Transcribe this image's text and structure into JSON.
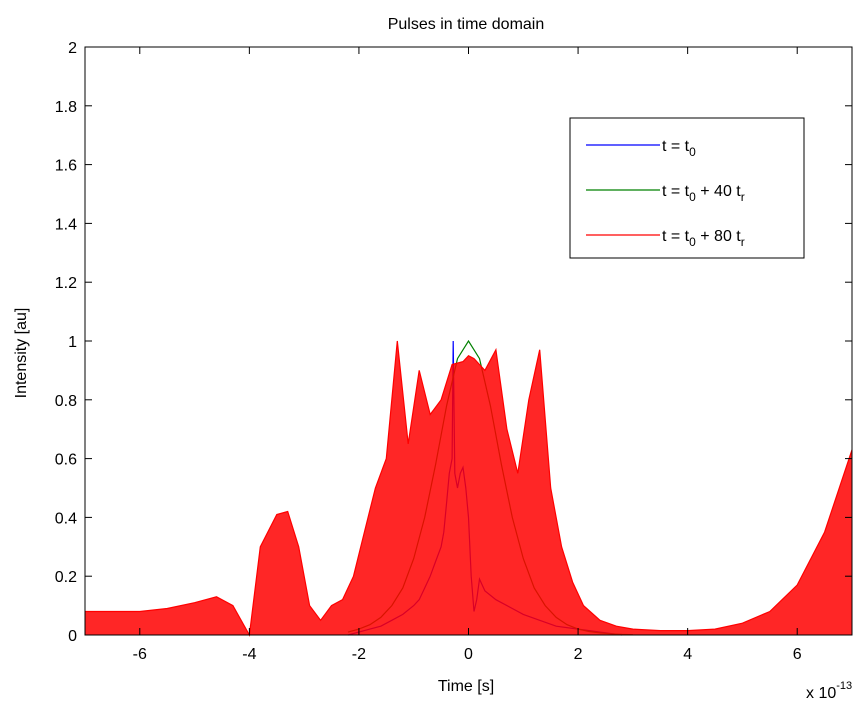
{
  "chart_data": {
    "type": "line",
    "title": "Pulses in time domain",
    "xlabel": "Time [s]",
    "ylabel": "Intensity [au]",
    "x_exponent_label": {
      "base": "x 10",
      "exp": "-13"
    },
    "xlim": [
      -7,
      7
    ],
    "ylim": [
      0,
      2
    ],
    "x_ticks": [
      -6,
      -4,
      -2,
      0,
      2,
      4,
      6
    ],
    "x_tick_labels": [
      "-6",
      "-4",
      "-2",
      "0",
      "2",
      "4",
      "6"
    ],
    "y_ticks": [
      0,
      0.2,
      0.4,
      0.6,
      0.8,
      1,
      1.2,
      1.4,
      1.6,
      1.8,
      2
    ],
    "y_tick_labels": [
      "0",
      "0.2",
      "0.4",
      "0.6",
      "0.8",
      "1",
      "1.2",
      "1.4",
      "1.6",
      "1.8",
      "2"
    ],
    "grid": false,
    "legend_position": "top-right",
    "series": [
      {
        "name": "t = t0",
        "legend_base": "t = t",
        "legend_sub": "0",
        "legend_tail": "",
        "legend_sub2": "",
        "color": "#0000ff",
        "x": [
          -2.2,
          -2.0,
          -1.8,
          -1.6,
          -1.4,
          -1.2,
          -1.0,
          -0.9,
          -0.8,
          -0.7,
          -0.6,
          -0.5,
          -0.45,
          -0.4,
          -0.35,
          -0.3,
          -0.28,
          -0.25,
          -0.2,
          -0.15,
          -0.1,
          -0.05,
          0.0,
          0.05,
          0.1,
          0.15,
          0.2,
          0.25,
          0.3,
          0.5,
          0.8,
          1.0,
          1.3,
          1.6,
          2.0,
          2.4,
          2.8
        ],
        "y": [
          0.0,
          0.01,
          0.02,
          0.03,
          0.05,
          0.07,
          0.1,
          0.12,
          0.16,
          0.2,
          0.25,
          0.3,
          0.35,
          0.45,
          0.55,
          0.6,
          1.0,
          0.55,
          0.5,
          0.55,
          0.57,
          0.5,
          0.4,
          0.2,
          0.08,
          0.12,
          0.19,
          0.17,
          0.15,
          0.12,
          0.09,
          0.07,
          0.05,
          0.03,
          0.02,
          0.01,
          0.0
        ]
      },
      {
        "name": "t = t0 + 40 tr",
        "legend_base": "t = t",
        "legend_sub": "0",
        "legend_tail": " + 40 t",
        "legend_sub2": "r",
        "color": "#008000",
        "x": [
          -2.2,
          -2.0,
          -1.8,
          -1.6,
          -1.4,
          -1.2,
          -1.0,
          -0.8,
          -0.6,
          -0.4,
          -0.2,
          0.0,
          0.2,
          0.4,
          0.6,
          0.8,
          1.0,
          1.2,
          1.4,
          1.6,
          1.8,
          2.0,
          2.2,
          2.4,
          2.6,
          2.8,
          3.0
        ],
        "y": [
          0.01,
          0.02,
          0.035,
          0.06,
          0.1,
          0.16,
          0.26,
          0.4,
          0.58,
          0.78,
          0.94,
          1.0,
          0.94,
          0.78,
          0.58,
          0.4,
          0.26,
          0.16,
          0.1,
          0.06,
          0.035,
          0.02,
          0.012,
          0.007,
          0.004,
          0.002,
          0.001
        ]
      },
      {
        "name": "t = t0 + 80 tr",
        "legend_base": "t = t",
        "legend_sub": "0",
        "legend_tail": " + 80 t",
        "legend_sub2": "r",
        "color": "#ff0000",
        "x": [
          -7.0,
          -6.0,
          -5.5,
          -5.0,
          -4.6,
          -4.3,
          -4.0,
          -3.8,
          -3.5,
          -3.3,
          -3.1,
          -2.9,
          -2.7,
          -2.5,
          -2.3,
          -2.1,
          -1.9,
          -1.7,
          -1.5,
          -1.3,
          -1.1,
          -0.9,
          -0.7,
          -0.5,
          -0.3,
          -0.1,
          0.0,
          0.1,
          0.3,
          0.5,
          0.7,
          0.9,
          1.1,
          1.3,
          1.5,
          1.7,
          1.9,
          2.1,
          2.4,
          2.7,
          3.0,
          3.5,
          4.0,
          4.5,
          5.0,
          5.5,
          6.0,
          6.5,
          7.0
        ],
        "y": [
          0.08,
          0.08,
          0.09,
          0.11,
          0.13,
          0.1,
          0.0,
          0.3,
          0.41,
          0.42,
          0.3,
          0.1,
          0.05,
          0.1,
          0.12,
          0.2,
          0.35,
          0.5,
          0.6,
          1.0,
          0.65,
          0.9,
          0.75,
          0.8,
          0.92,
          0.93,
          0.95,
          0.94,
          0.9,
          0.97,
          0.7,
          0.55,
          0.8,
          0.97,
          0.5,
          0.3,
          0.18,
          0.1,
          0.05,
          0.03,
          0.02,
          0.015,
          0.015,
          0.02,
          0.04,
          0.08,
          0.17,
          0.35,
          0.63
        ]
      }
    ]
  }
}
